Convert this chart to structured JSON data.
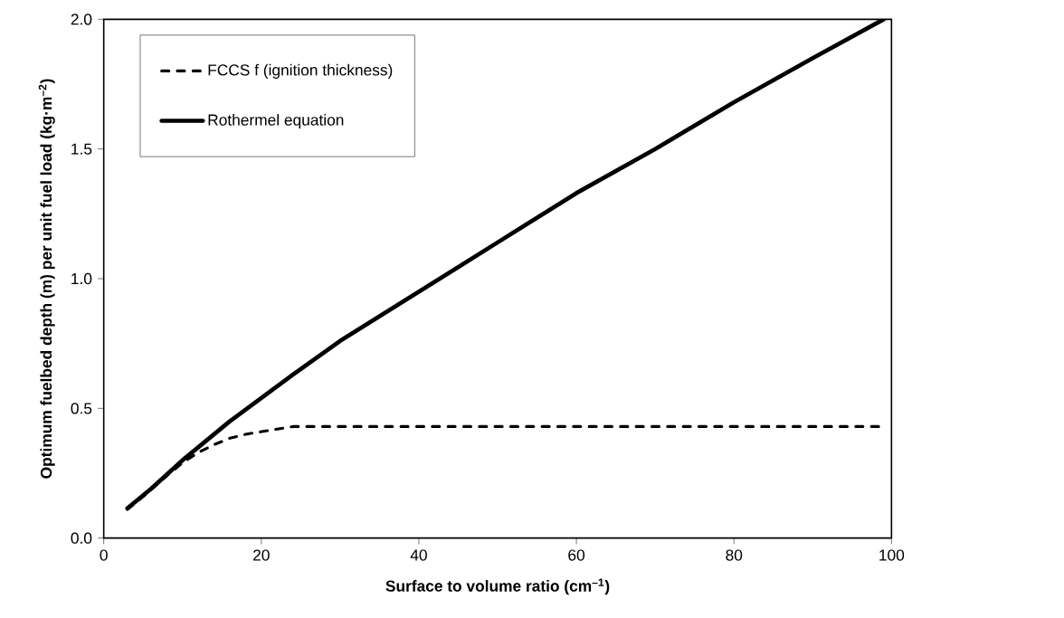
{
  "chart_data": {
    "type": "line",
    "xlabel": "Surface to volume ratio (cm$^{–1}$)",
    "ylabel": "Optimum fuelbed depth (m) per unit fuel load (kg·m$^{–2}$)",
    "xlim": [
      0,
      100
    ],
    "ylim": [
      0,
      2.0
    ],
    "xticks": [
      0,
      20,
      40,
      60,
      80,
      100
    ],
    "yticks": [
      {
        "value": 0,
        "label": "0.0"
      },
      {
        "value": 0.5,
        "label": "0.5"
      },
      {
        "value": 1.0,
        "label": "1.0"
      },
      {
        "value": 1.5,
        "label": "1.5"
      },
      {
        "value": 2.0,
        "label": "2.0"
      }
    ],
    "grid": false,
    "legend": "top left",
    "marker": "none",
    "series": [
      {
        "name": "FCCS f (ignition thickness)",
        "color": "#000000",
        "line_style": "dashed",
        "x": [
          3,
          5,
          8,
          10,
          12,
          14,
          16,
          18,
          20,
          22,
          24,
          40,
          60,
          80,
          99
        ],
        "values": [
          0.11,
          0.16,
          0.24,
          0.29,
          0.33,
          0.36,
          0.385,
          0.4,
          0.41,
          0.42,
          0.43,
          0.43,
          0.43,
          0.43,
          0.43
        ]
      },
      {
        "name": "Rothermel equation",
        "color": "#000000",
        "line_style": "solid",
        "x": [
          3,
          6,
          10,
          16,
          24,
          30,
          40,
          50,
          60,
          70,
          80,
          90,
          99
        ],
        "values": [
          0.115,
          0.19,
          0.3,
          0.45,
          0.63,
          0.76,
          0.95,
          1.14,
          1.33,
          1.5,
          1.68,
          1.85,
          2.0
        ]
      }
    ]
  }
}
